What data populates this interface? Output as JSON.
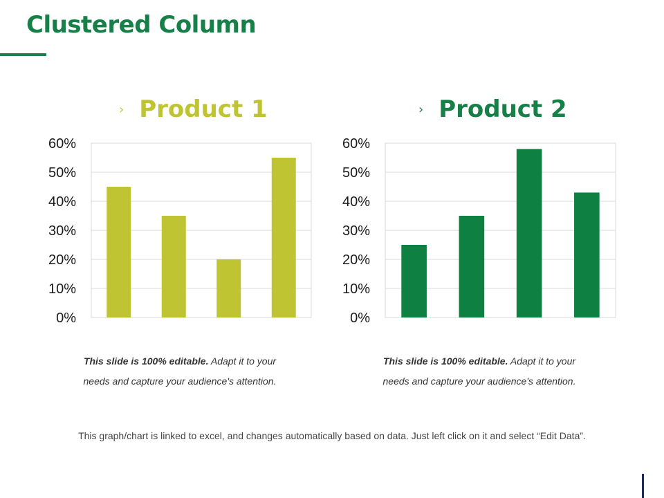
{
  "slide": {
    "title": "Clustered Column",
    "footer": "This graph/chart is linked to excel, and changes automatically based on data. Just left click on it and select “Edit Data”."
  },
  "charts": [
    {
      "heading": "Product 1",
      "marker": "›",
      "note_bold": "This slide is 100% editable.",
      "note_rest": " Adapt it to your needs and capture your audience's attention."
    },
    {
      "heading": "Product 2",
      "marker": "›",
      "note_bold": "This slide is 100% editable.",
      "note_rest": " Adapt it to your needs and capture your audience's attention."
    }
  ],
  "colors": {
    "title": "#178049",
    "product1": "#bfc432",
    "product2": "#0e8142",
    "grid": "#d9d9d9"
  },
  "chart_data": [
    {
      "type": "bar",
      "title": "Product 1",
      "categories": [
        "",
        "",
        "",
        ""
      ],
      "values": [
        45,
        35,
        20,
        55
      ],
      "ylim": [
        0,
        60
      ],
      "yticks": [
        "0%",
        "10%",
        "20%",
        "30%",
        "40%",
        "50%",
        "60%"
      ],
      "grid": true,
      "color": "#bfc432"
    },
    {
      "type": "bar",
      "title": "Product 2",
      "categories": [
        "",
        "",
        "",
        ""
      ],
      "values": [
        25,
        35,
        58,
        43
      ],
      "ylim": [
        0,
        60
      ],
      "yticks": [
        "0%",
        "10%",
        "20%",
        "30%",
        "40%",
        "50%",
        "60%"
      ],
      "grid": true,
      "color": "#0e8142"
    }
  ]
}
